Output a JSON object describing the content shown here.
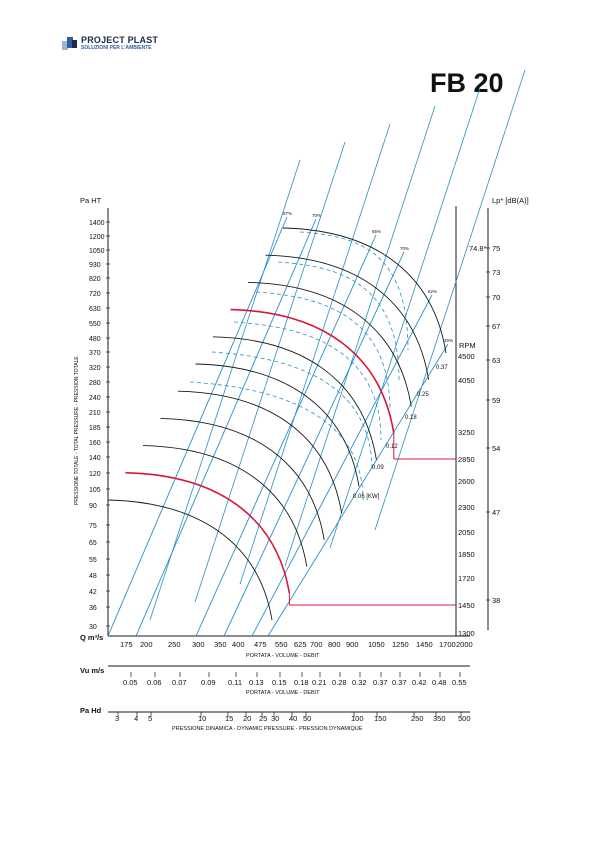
{
  "header": {
    "brand": "PROJECT PLAST",
    "tagline": "SOLUZIONI PER L'AMBIENTE",
    "model": "FB 20"
  },
  "chart_data": {
    "type": "line",
    "left_axis": {
      "unit_label": "Pa HT",
      "title": "PRESSIONE TOTALE - TOTAL PRESSURE - PRESSION TOTALE",
      "ticks": [
        "1400",
        "1200",
        "1050",
        "930",
        "820",
        "720",
        "630",
        "550",
        "480",
        "370",
        "320",
        "280",
        "240",
        "210",
        "185",
        "160",
        "140",
        "120",
        "105",
        "90",
        "75",
        "65",
        "55",
        "48",
        "42",
        "36",
        "30"
      ]
    },
    "right_axis_rpm": {
      "label": "RPM",
      "ticks": [
        "4500",
        "4050",
        "3250",
        "2850",
        "2600",
        "2300",
        "2050",
        "1850",
        "1720",
        "1450",
        "1300"
      ]
    },
    "right_axis_noise": {
      "label": "Lp* [dB(A)]",
      "ticks": [
        "74.8*",
        "75",
        "73",
        "70",
        "67",
        "63",
        "59",
        "54",
        "47",
        "38"
      ]
    },
    "flow_axis": {
      "unit_label": "Q m³/s",
      "title": "PORTATA - VOLUME - DEBIT",
      "ticks": [
        "175",
        "200",
        "250",
        "300",
        "350",
        "400",
        "475",
        "550",
        "625",
        "700",
        "800",
        "900",
        "1050",
        "1250",
        "1450",
        "1700",
        "2000"
      ]
    },
    "velocity_axis": {
      "unit_label": "Vu m/s",
      "title": "PORTATA - VOLUME - DEBIT",
      "ticks": [
        "0.05",
        "0.06",
        "0.07",
        "0.09",
        "0.11",
        "0.13",
        "0.15",
        "0.18",
        "0.21",
        "0.28",
        "0.32",
        "0.37",
        "0.37",
        "0.42",
        "0.48",
        "0.55"
      ]
    },
    "dynamic_pressure_axis": {
      "unit_label": "Pa Hd",
      "title": "PRESSIONE DINAMICA - DYNAMIC PRESSURE - PRESSION DYNAMIQUE",
      "ticks": [
        "3",
        "4",
        "5",
        "10",
        "15",
        "20",
        "25",
        "30",
        "40",
        "50",
        "100",
        "150",
        "250",
        "350",
        "500"
      ]
    },
    "efficiency_labels": [
      "67%",
      "70%",
      "65%",
      "70%",
      "62%",
      "45%"
    ],
    "power_labels": [
      "0.37",
      "0.25",
      "0.18",
      "0.12",
      "0.09",
      "0.06 [KW]"
    ],
    "rpm_curves": [
      4500,
      4050,
      3250,
      2850,
      2600,
      2300,
      2050,
      1850,
      1720,
      1450,
      1300
    ],
    "highlighted_rpm": [
      2850,
      1450
    ],
    "colors": {
      "curves": "#1a1a1a",
      "highlight": "#d6183c",
      "efficiency_lines": "#2a8fc4",
      "brand_dark": "#1d2a4a",
      "brand_blue": "#2f5f9e"
    }
  }
}
